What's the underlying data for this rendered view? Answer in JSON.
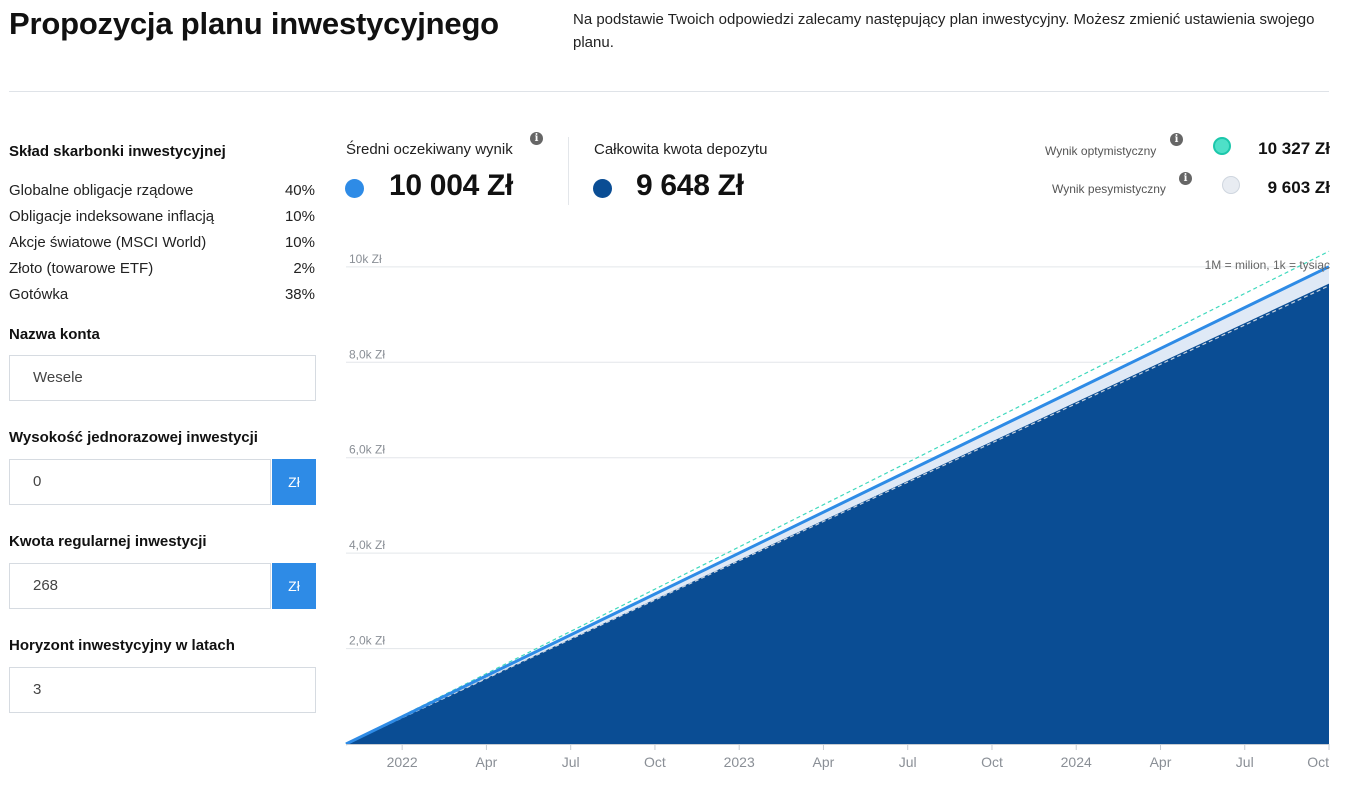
{
  "header": {
    "title": "Propozycja planu inwestycyjnego",
    "intro": "Na podstawie Twoich odpowiedzi zalecamy następujący plan inwestycyjny. Możesz zmienić ustawienia swojego planu."
  },
  "composition": {
    "title": "Skład skarbonki inwestycyjnej",
    "items": [
      {
        "label": "Globalne obligacje rządowe",
        "pct": "40%"
      },
      {
        "label": "Obligacje indeksowane inflacją",
        "pct": "10%"
      },
      {
        "label": "Akcje światowe (MSCI World)",
        "pct": "10%"
      },
      {
        "label": "Złoto (towarowe ETF)",
        "pct": "2%"
      },
      {
        "label": "Gotówka",
        "pct": "38%"
      }
    ]
  },
  "form": {
    "account_name_label": "Nazwa konta",
    "account_name_value": "Wesele",
    "lump_sum_label": "Wysokość jednorazowej inwestycji",
    "lump_sum_value": "0",
    "lump_sum_unit": "Zł",
    "regular_label": "Kwota regularnej inwestycji",
    "regular_value": "268",
    "regular_unit": "Zł",
    "horizon_label": "Horyzont inwestycyjny w latach",
    "horizon_value": "3"
  },
  "summary": {
    "expected_label": "Średni oczekiwany wynik",
    "expected_value": "10 004 Zł",
    "deposit_label": "Całkowita kwota depozytu",
    "deposit_value": "9 648 Zł",
    "optimistic_label": "Wynik optymistyczny",
    "optimistic_value": "10 327 Zł",
    "pessimistic_label": "Wynik pesymistyczny",
    "pessimistic_value": "9 603 Zł",
    "info_glyph": "i"
  },
  "colors": {
    "expected": "#2e8be6",
    "deposit": "#0a4d94",
    "optimistic": "#4ee0c8",
    "pessimistic": "#e8ecf2",
    "accent_button": "#2e8be6"
  },
  "chart_note": "1M = milion, 1k = tysiąc",
  "chart_data": {
    "type": "area",
    "y_ticks": [
      "2,0k Zł",
      "4,0k Zł",
      "6,0k Zł",
      "8,0k Zł",
      "10k Zł"
    ],
    "y_tick_values": [
      2000,
      4000,
      6000,
      8000,
      10000
    ],
    "x_ticks": [
      "2022",
      "Apr",
      "Jul",
      "Oct",
      "2023",
      "Apr",
      "Jul",
      "Oct",
      "2024",
      "Apr",
      "Jul",
      "Oct"
    ],
    "x_tick_months": [
      2,
      5,
      8,
      11,
      14,
      17,
      20,
      23,
      26,
      29,
      32,
      35
    ],
    "x_range_months": [
      0,
      35
    ],
    "ylim": [
      0,
      10500
    ],
    "grid": true,
    "series": [
      {
        "name": "Całkowita kwota depozytu",
        "style": "area",
        "start": 0,
        "end": 9648
      },
      {
        "name": "Średni oczekiwany wynik",
        "style": "line",
        "start": 0,
        "end": 10004
      },
      {
        "name": "Wynik optymistyczny",
        "style": "dashed",
        "start": 0,
        "end": 10327
      },
      {
        "name": "Wynik pesymistyczny",
        "style": "dashed",
        "start": 0,
        "end": 9603
      }
    ]
  }
}
